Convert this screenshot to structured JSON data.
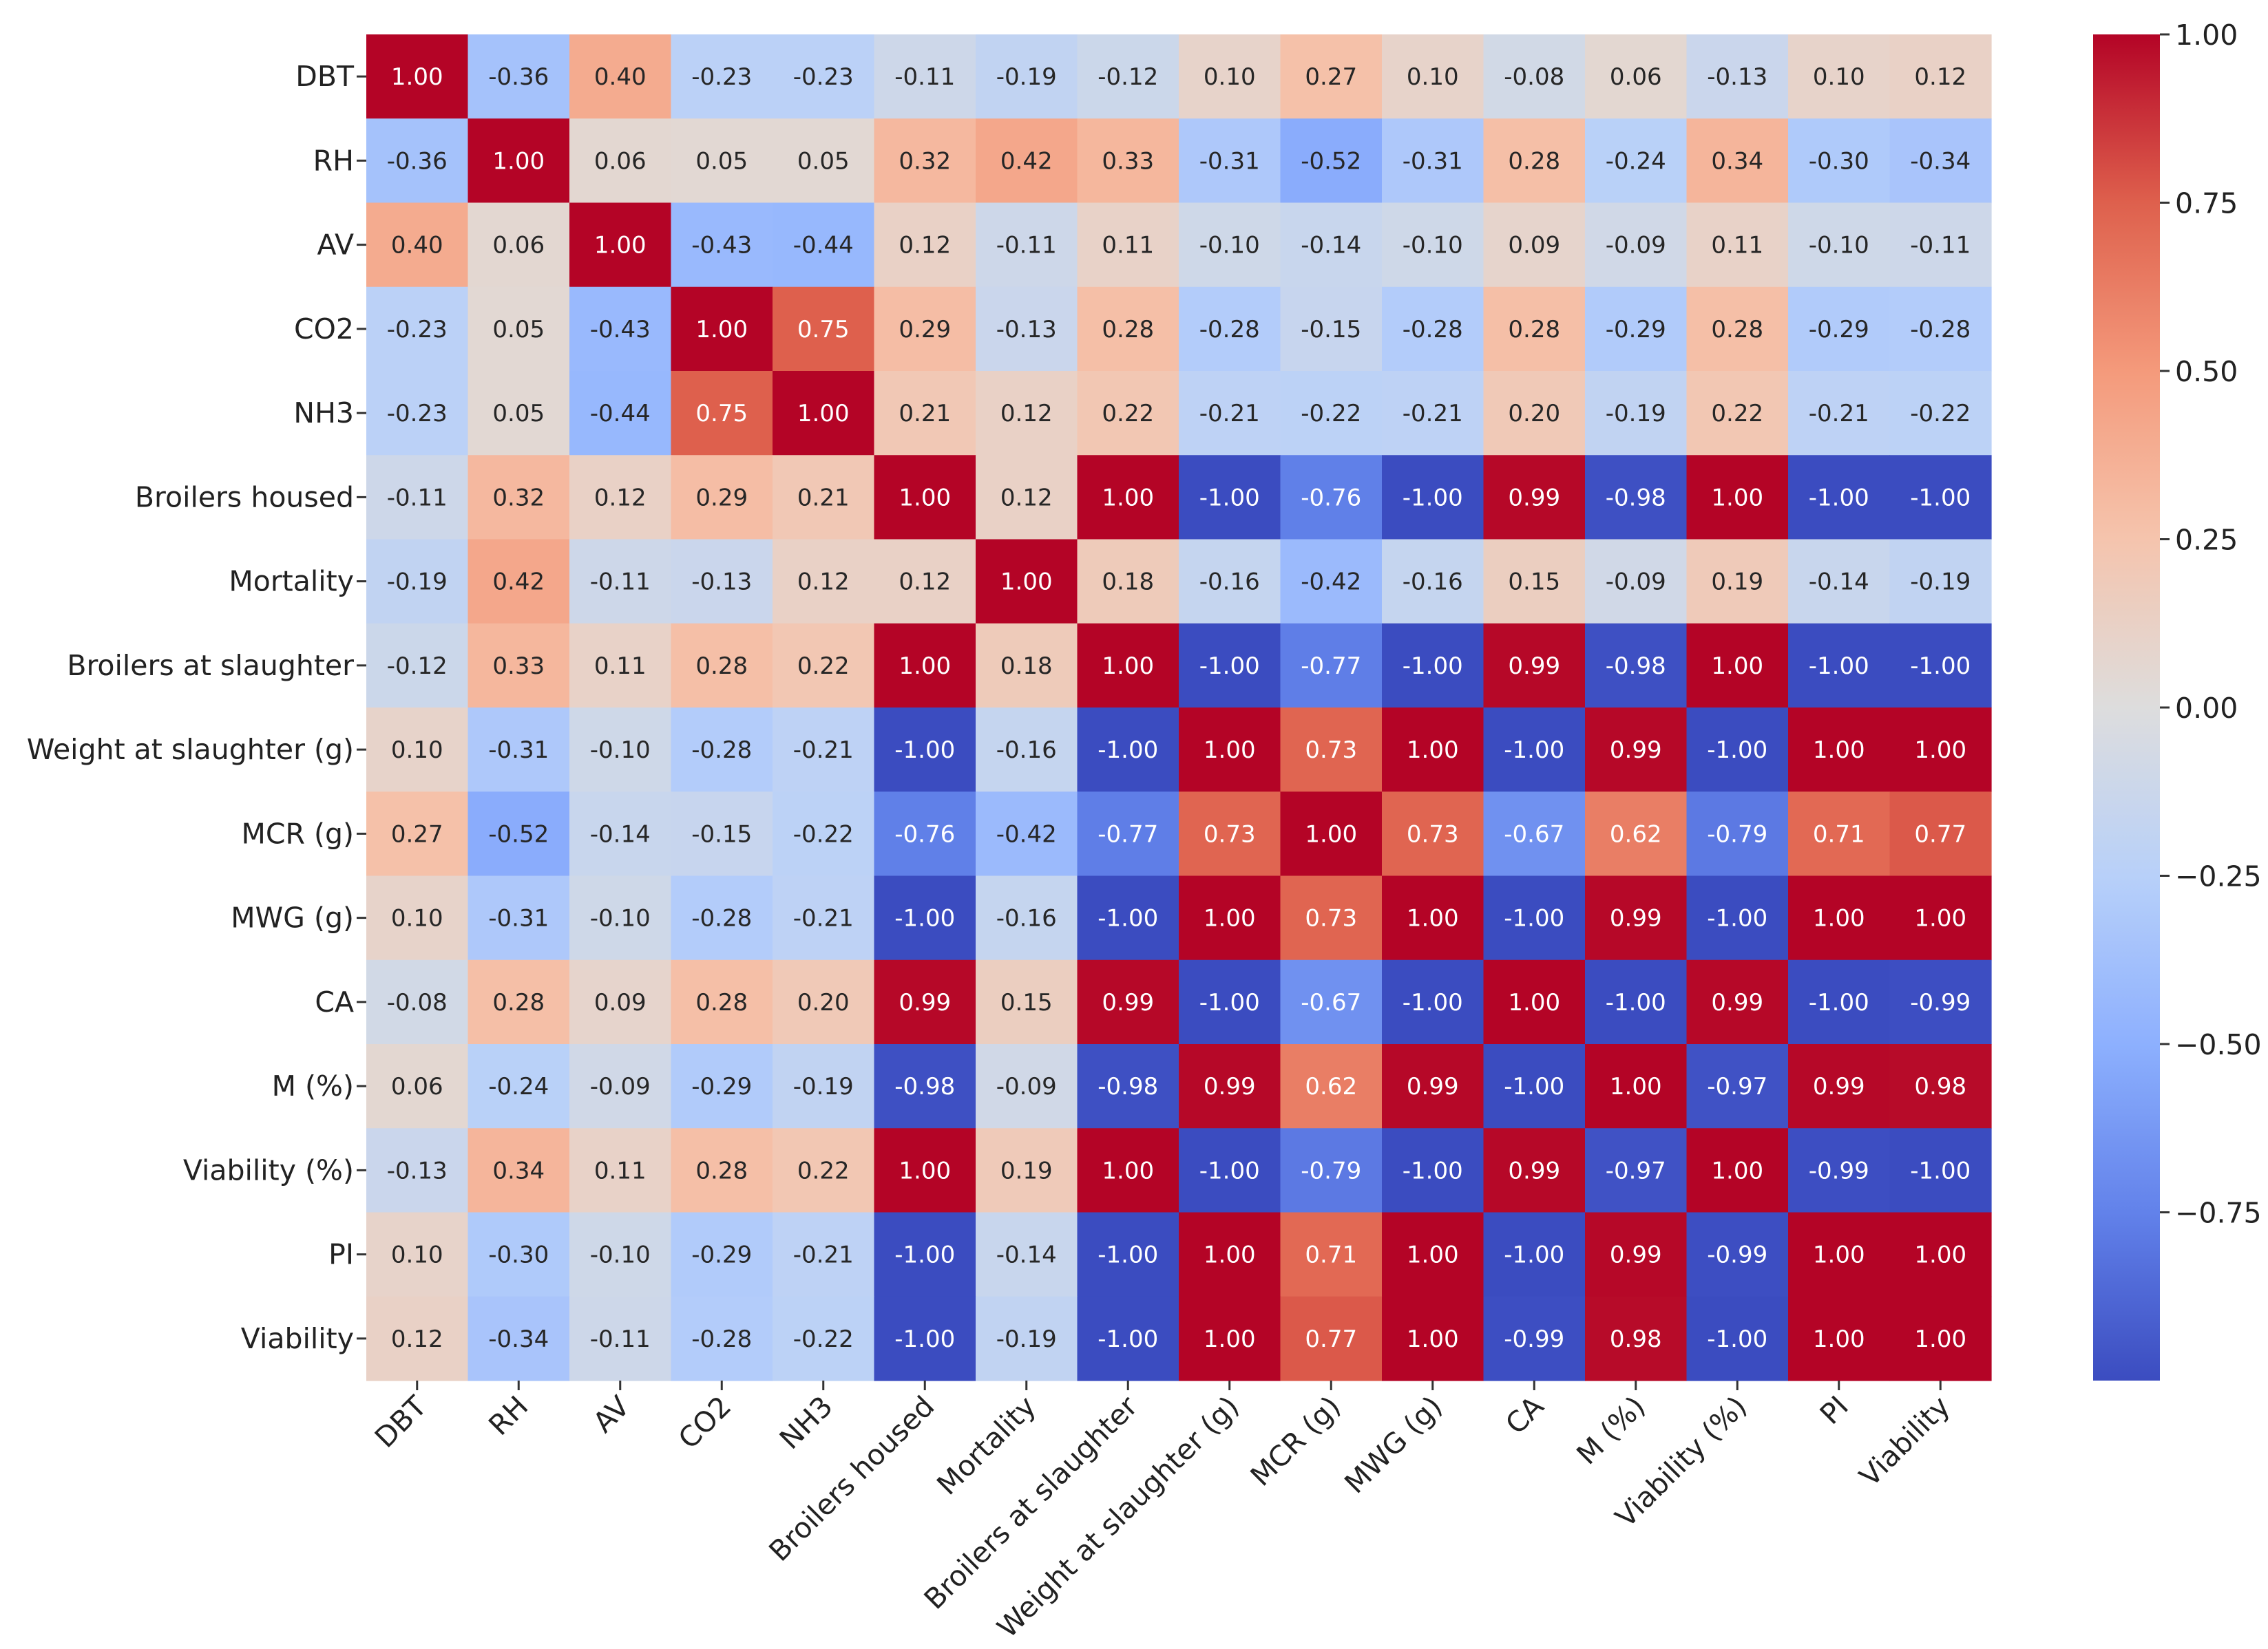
{
  "chart_data": {
    "type": "heatmap",
    "title": "",
    "xlabel": "",
    "ylabel": "",
    "row_labels": [
      "DBT",
      "RH",
      "AV",
      "CO2",
      "NH3",
      "Broilers housed",
      "Mortality",
      "Broilers at slaughter",
      "Weight at slaughter (g)",
      "MCR (g)",
      "MWG (g)",
      "CA",
      "M (%)",
      "Viability (%)",
      "PI",
      "Viability"
    ],
    "col_labels": [
      "DBT",
      "RH",
      "AV",
      "CO2",
      "NH3",
      "Broilers housed",
      "Mortality",
      "Broilers at slaughter",
      "Weight at slaughter (g)",
      "MCR (g)",
      "MWG (g)",
      "CA",
      "M (%)",
      "Viability (%)",
      "PI",
      "Viability"
    ],
    "values": [
      [
        1.0,
        -0.36,
        0.4,
        -0.23,
        -0.23,
        -0.11,
        -0.19,
        -0.12,
        0.1,
        0.27,
        0.1,
        -0.08,
        0.06,
        -0.13,
        0.1,
        0.12
      ],
      [
        -0.36,
        1.0,
        0.06,
        0.05,
        0.05,
        0.32,
        0.42,
        0.33,
        -0.31,
        -0.52,
        -0.31,
        0.28,
        -0.24,
        0.34,
        -0.3,
        -0.34
      ],
      [
        0.4,
        0.06,
        1.0,
        -0.43,
        -0.44,
        0.12,
        -0.11,
        0.11,
        -0.1,
        -0.14,
        -0.1,
        0.09,
        -0.09,
        0.11,
        -0.1,
        -0.11
      ],
      [
        -0.23,
        0.05,
        -0.43,
        1.0,
        0.75,
        0.29,
        -0.13,
        0.28,
        -0.28,
        -0.15,
        -0.28,
        0.28,
        -0.29,
        0.28,
        -0.29,
        -0.28
      ],
      [
        -0.23,
        0.05,
        -0.44,
        0.75,
        1.0,
        0.21,
        0.12,
        0.22,
        -0.21,
        -0.22,
        -0.21,
        0.2,
        -0.19,
        0.22,
        -0.21,
        -0.22
      ],
      [
        -0.11,
        0.32,
        0.12,
        0.29,
        0.21,
        1.0,
        0.12,
        1.0,
        -1.0,
        -0.76,
        -1.0,
        0.99,
        -0.98,
        1.0,
        -1.0,
        -1.0
      ],
      [
        -0.19,
        0.42,
        -0.11,
        -0.13,
        0.12,
        0.12,
        1.0,
        0.18,
        -0.16,
        -0.42,
        -0.16,
        0.15,
        -0.09,
        0.19,
        -0.14,
        -0.19
      ],
      [
        -0.12,
        0.33,
        0.11,
        0.28,
        0.22,
        1.0,
        0.18,
        1.0,
        -1.0,
        -0.77,
        -1.0,
        0.99,
        -0.98,
        1.0,
        -1.0,
        -1.0
      ],
      [
        0.1,
        -0.31,
        -0.1,
        -0.28,
        -0.21,
        -1.0,
        -0.16,
        -1.0,
        1.0,
        0.73,
        1.0,
        -1.0,
        0.99,
        -1.0,
        1.0,
        1.0
      ],
      [
        0.27,
        -0.52,
        -0.14,
        -0.15,
        -0.22,
        -0.76,
        -0.42,
        -0.77,
        0.73,
        1.0,
        0.73,
        -0.67,
        0.62,
        -0.79,
        0.71,
        0.77
      ],
      [
        0.1,
        -0.31,
        -0.1,
        -0.28,
        -0.21,
        -1.0,
        -0.16,
        -1.0,
        1.0,
        0.73,
        1.0,
        -1.0,
        0.99,
        -1.0,
        1.0,
        1.0
      ],
      [
        -0.08,
        0.28,
        0.09,
        0.28,
        0.2,
        0.99,
        0.15,
        0.99,
        -1.0,
        -0.67,
        -1.0,
        1.0,
        -1.0,
        0.99,
        -1.0,
        -0.99
      ],
      [
        0.06,
        -0.24,
        -0.09,
        -0.29,
        -0.19,
        -0.98,
        -0.09,
        -0.98,
        0.99,
        0.62,
        0.99,
        -1.0,
        1.0,
        -0.97,
        0.99,
        0.98
      ],
      [
        -0.13,
        0.34,
        0.11,
        0.28,
        0.22,
        1.0,
        0.19,
        1.0,
        -1.0,
        -0.79,
        -1.0,
        0.99,
        -0.97,
        1.0,
        -0.99,
        -1.0
      ],
      [
        0.1,
        -0.3,
        -0.1,
        -0.29,
        -0.21,
        -1.0,
        -0.14,
        -1.0,
        1.0,
        0.71,
        1.0,
        -1.0,
        0.99,
        -0.99,
        1.0,
        1.0
      ],
      [
        0.12,
        -0.34,
        -0.11,
        -0.28,
        -0.22,
        -1.0,
        -0.19,
        -1.0,
        1.0,
        0.77,
        1.0,
        -0.99,
        0.98,
        -1.0,
        1.0,
        1.0
      ]
    ],
    "value_range": [
      -1.0,
      1.0
    ],
    "colormap": "coolwarm",
    "colorbar": {
      "ticks": [
        1.0,
        0.75,
        0.5,
        0.25,
        0.0,
        -0.25,
        -0.5,
        -0.75
      ],
      "tick_labels": [
        "1.00",
        "0.75",
        "0.50",
        "0.25",
        "0.00",
        "−0.25",
        "−0.50",
        "−0.75"
      ],
      "placement": "right"
    },
    "annotations": "cell values shown with two decimals",
    "grid": false
  }
}
